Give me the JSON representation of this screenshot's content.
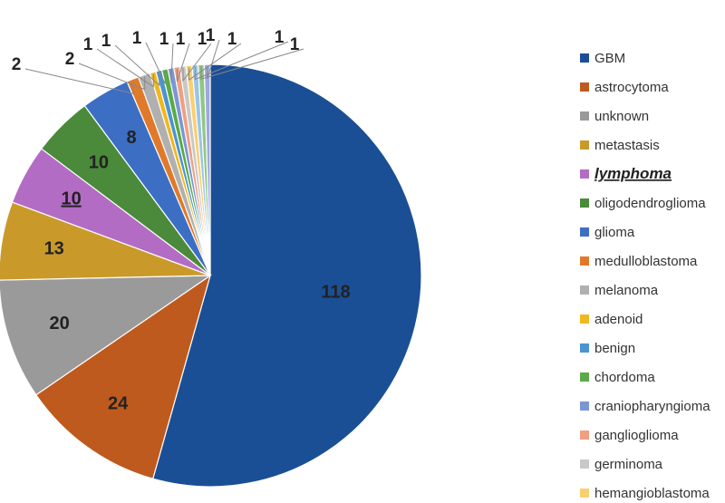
{
  "chart_data": {
    "type": "pie",
    "title": "",
    "highlighted": "lymphoma",
    "slices": [
      {
        "label": "GBM",
        "value": 118,
        "color": "#1A4F96"
      },
      {
        "label": "astrocytoma",
        "value": 24,
        "color": "#BF5A1E"
      },
      {
        "label": "unknown",
        "value": 20,
        "color": "#9A9A9A"
      },
      {
        "label": "metastasis",
        "value": 13,
        "color": "#C99A2A"
      },
      {
        "label": "lymphoma",
        "value": 10,
        "color": "#B36CC4"
      },
      {
        "label": "oligodendroglioma",
        "value": 10,
        "color": "#4A8A3A"
      },
      {
        "label": "glioma",
        "value": 8,
        "color": "#3C6EC4"
      },
      {
        "label": "medulloblastoma",
        "value": 2,
        "color": "#E07A2A"
      },
      {
        "label": "melanoma",
        "value": 2,
        "color": "#B0B0B0"
      },
      {
        "label": "adenoid",
        "value": 1,
        "color": "#F0B81E"
      },
      {
        "label": "benign",
        "value": 1,
        "color": "#4A94D0"
      },
      {
        "label": "chordoma",
        "value": 1,
        "color": "#5AAA46"
      },
      {
        "label": "craniopharyngioma",
        "value": 1,
        "color": "#7A96D6"
      },
      {
        "label": "ganglioglioma",
        "value": 1,
        "color": "#F0A080"
      },
      {
        "label": "germinoma",
        "value": 1,
        "color": "#C8C8C8"
      },
      {
        "label": "hemangioblastoma",
        "value": 1,
        "color": "#F8D070"
      },
      {
        "label": "",
        "value": 1,
        "color": "#9AC4E8"
      },
      {
        "label": "",
        "value": 1,
        "color": "#90C880"
      },
      {
        "label": "",
        "value": 1,
        "color": "#A0A8E0"
      }
    ]
  }
}
